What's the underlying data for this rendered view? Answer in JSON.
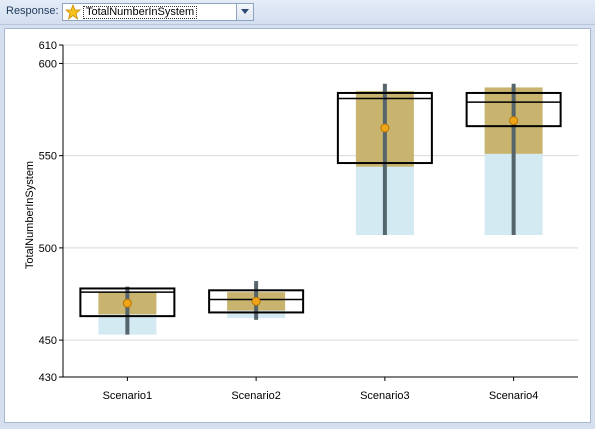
{
  "toolbar": {
    "response_label": "Response:",
    "response_value": "TotalNumberInSystem",
    "response_icon": "star-icon"
  },
  "chart_data": {
    "type": "boxplot",
    "ylabel": "TotalNumberInSystem",
    "ylim": [
      430,
      610
    ],
    "yticks": [
      430,
      450,
      500,
      550,
      600,
      610
    ],
    "categories": [
      "Scenario1",
      "Scenario2",
      "Scenario3",
      "Scenario4"
    ],
    "colors": {
      "box_outline": "#000000",
      "upper_band": "#c8b46e",
      "lower_band": "#d4eaf2",
      "whisker": "#56656c",
      "mean_marker": "#f0a418",
      "grid": "#d9d9d9"
    },
    "boxes": [
      {
        "name": "Scenario1",
        "whisker_low": 453,
        "whisker_high": 479,
        "box_low": 463,
        "box_high": 478,
        "median": 476,
        "band_low": 453,
        "band_mid": 464,
        "band_high": 476,
        "mean": 470
      },
      {
        "name": "Scenario2",
        "whisker_low": 461,
        "whisker_high": 482,
        "box_low": 465,
        "box_high": 477,
        "median": 472,
        "band_low": 462,
        "band_mid": 466,
        "band_high": 476,
        "mean": 471
      },
      {
        "name": "Scenario3",
        "whisker_low": 507,
        "whisker_high": 589,
        "box_low": 546,
        "box_high": 584,
        "median": 581,
        "band_low": 507,
        "band_mid": 544,
        "band_high": 585,
        "mean": 565
      },
      {
        "name": "Scenario4",
        "whisker_low": 507,
        "whisker_high": 589,
        "box_low": 566,
        "box_high": 584,
        "median": 579,
        "band_low": 507,
        "band_mid": 551,
        "band_high": 587,
        "mean": 569
      }
    ]
  }
}
